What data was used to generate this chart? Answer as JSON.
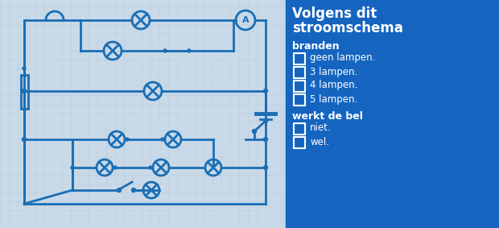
{
  "bg_color": "#c9d9e8",
  "circuit_color": "#1a6eb5",
  "panel_color": "#1565c0",
  "title_lines": [
    "Volgens dit",
    "stroomschema"
  ],
  "section1_label": "branden",
  "section1_options": [
    "geen lampen.",
    "3 lampen.",
    "4 lampen.",
    "5 lampen."
  ],
  "section2_label": "werkt de bel",
  "section2_options": [
    "niet.",
    "wel."
  ],
  "white": "#ffffff",
  "grid_color": "#b8cfe0"
}
